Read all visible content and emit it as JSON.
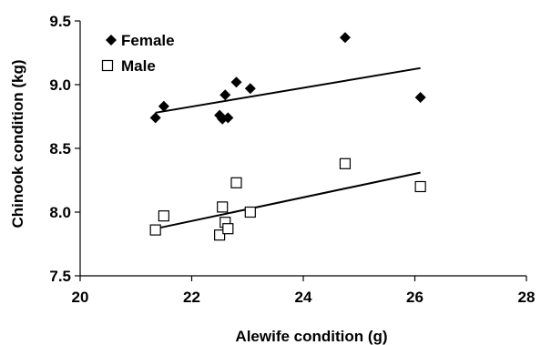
{
  "chart_data": {
    "type": "scatter",
    "xlabel": "Alewife condition (g)",
    "ylabel": "Chinook condition (kg)",
    "xlim": [
      20,
      28
    ],
    "ylim": [
      7.5,
      9.5
    ],
    "xticks": [
      20,
      22,
      24,
      26,
      28
    ],
    "yticks": [
      7.5,
      8.0,
      8.5,
      9.0,
      9.5
    ],
    "xtick_labels": [
      "20",
      "22",
      "24",
      "26",
      "28"
    ],
    "ytick_labels": [
      "7.5",
      "8.0",
      "8.5",
      "9.0",
      "9.5"
    ],
    "legend_position": "top-left",
    "grid": false,
    "series": [
      {
        "name": "Female",
        "marker": "filled-diamond",
        "color": "#000000",
        "x": [
          21.35,
          21.5,
          22.5,
          22.55,
          22.6,
          22.65,
          22.8,
          23.05,
          24.75,
          26.1
        ],
        "y": [
          8.74,
          8.83,
          8.76,
          8.73,
          8.92,
          8.74,
          9.02,
          8.97,
          9.37,
          8.9
        ],
        "trendline": {
          "x": [
            21.35,
            26.1
          ],
          "y": [
            8.78,
            9.13
          ]
        }
      },
      {
        "name": "Male",
        "marker": "open-square",
        "color": "#000000",
        "x": [
          21.35,
          21.5,
          22.5,
          22.55,
          22.6,
          22.65,
          22.8,
          23.05,
          24.75,
          26.1
        ],
        "y": [
          7.86,
          7.97,
          7.82,
          8.04,
          7.92,
          7.87,
          8.23,
          8.0,
          8.38,
          8.2
        ],
        "trendline": {
          "x": [
            21.35,
            26.1
          ],
          "y": [
            7.87,
            8.31
          ]
        }
      }
    ]
  }
}
